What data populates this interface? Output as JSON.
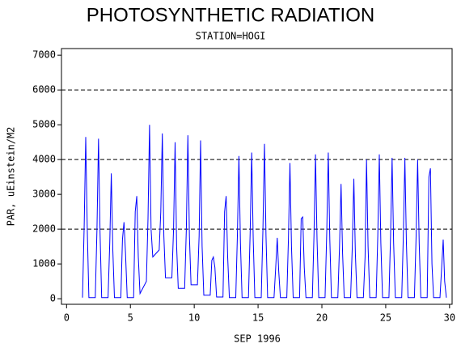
{
  "chart_data": {
    "type": "line",
    "title": "PHOTOSYNTHETIC RADIATION",
    "subtitle": "STATION=HOGI",
    "x_label": "SEP 1996",
    "y_label": "PAR, uEinstein/M2",
    "xlim": [
      -0.4,
      30.2
    ],
    "xticks": [
      0,
      5,
      10,
      15,
      20,
      25,
      30
    ],
    "ylim": [
      -160,
      7190
    ],
    "yticks": [
      0,
      1000,
      2000,
      3000,
      4000,
      5000,
      6000,
      7000
    ],
    "grid_lines": [
      2000,
      4000,
      6000
    ],
    "series": [
      {
        "color": "#0000ff",
        "x": [
          1.25,
          1.38,
          1.5,
          1.62,
          1.75,
          2.25,
          2.38,
          2.5,
          2.62,
          2.75,
          3.25,
          3.38,
          3.5,
          3.62,
          3.75,
          4.25,
          4.38,
          4.5,
          4.62,
          4.75,
          5.25,
          5.38,
          5.5,
          5.62,
          5.75,
          6.25,
          6.38,
          6.5,
          6.62,
          6.75,
          7.25,
          7.38,
          7.5,
          7.62,
          7.75,
          8.25,
          8.38,
          8.5,
          8.62,
          8.75,
          9.25,
          9.38,
          9.5,
          9.62,
          9.75,
          10.25,
          10.38,
          10.5,
          10.62,
          10.75,
          11.25,
          11.38,
          11.5,
          11.62,
          11.75,
          12.25,
          12.38,
          12.5,
          12.62,
          12.75,
          13.25,
          13.38,
          13.5,
          13.62,
          13.75,
          14.25,
          14.38,
          14.5,
          14.62,
          14.75,
          15.25,
          15.38,
          15.5,
          15.62,
          15.75,
          16.25,
          16.38,
          16.5,
          16.62,
          16.75,
          17.25,
          17.38,
          17.5,
          17.62,
          17.75,
          18.25,
          18.38,
          18.5,
          18.62,
          18.75,
          19.25,
          19.38,
          19.5,
          19.62,
          19.75,
          20.25,
          20.38,
          20.5,
          20.62,
          20.75,
          21.25,
          21.38,
          21.5,
          21.62,
          21.75,
          22.25,
          22.38,
          22.5,
          22.62,
          22.75,
          23.25,
          23.38,
          23.5,
          23.62,
          23.75,
          24.25,
          24.38,
          24.5,
          24.62,
          24.75,
          25.25,
          25.38,
          25.5,
          25.62,
          25.75,
          26.25,
          26.38,
          26.5,
          26.62,
          26.75,
          27.25,
          27.38,
          27.5,
          27.62,
          27.75,
          28.25,
          28.38,
          28.5,
          28.62,
          28.75,
          29.25,
          29.38,
          29.5,
          29.62,
          29.75
        ],
        "values": [
          30,
          2100,
          4650,
          2000,
          30,
          30,
          2000,
          4600,
          1900,
          30,
          30,
          1600,
          3600,
          1400,
          30,
          30,
          1700,
          2200,
          1300,
          30,
          30,
          2500,
          2950,
          1200,
          150,
          500,
          2300,
          5000,
          2000,
          1200,
          1400,
          2500,
          4750,
          1800,
          600,
          600,
          2000,
          4500,
          1500,
          300,
          300,
          2000,
          4700,
          1800,
          400,
          400,
          1800,
          4550,
          1500,
          100,
          100,
          1100,
          1200,
          900,
          50,
          50,
          2500,
          2950,
          1200,
          30,
          30,
          1800,
          4100,
          1600,
          30,
          30,
          1900,
          4200,
          1700,
          30,
          30,
          2000,
          4450,
          1800,
          30,
          30,
          900,
          1750,
          800,
          30,
          30,
          1700,
          3900,
          1500,
          30,
          30,
          2300,
          2350,
          900,
          30,
          30,
          1800,
          4150,
          1700,
          30,
          30,
          1900,
          4200,
          1700,
          30,
          30,
          1500,
          3300,
          1300,
          30,
          30,
          1500,
          3450,
          1300,
          30,
          30,
          1200,
          4000,
          1500,
          30,
          30,
          1800,
          4150,
          1600,
          30,
          30,
          1800,
          4050,
          1600,
          30,
          30,
          1800,
          4050,
          1600,
          30,
          30,
          1800,
          4000,
          1600,
          30,
          30,
          3500,
          3750,
          1000,
          30,
          30,
          900,
          1700,
          500,
          30
        ]
      }
    ]
  }
}
